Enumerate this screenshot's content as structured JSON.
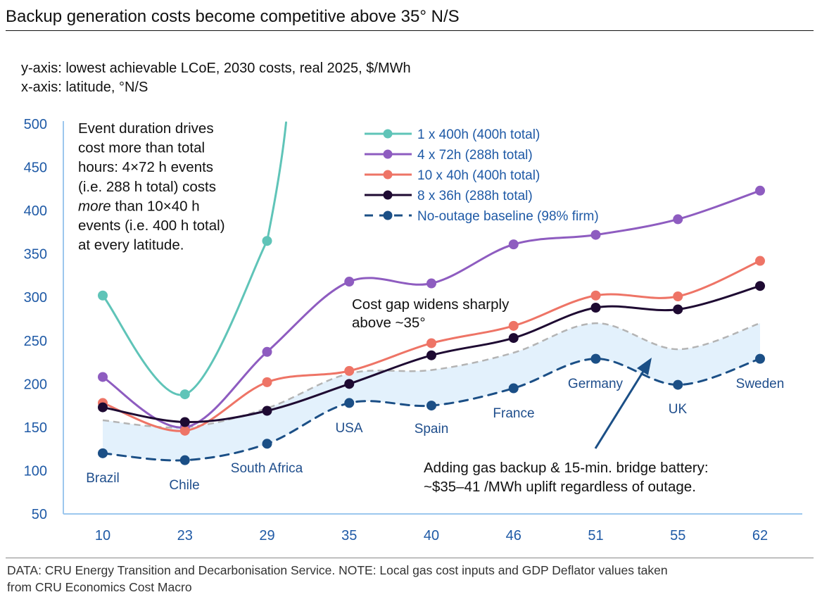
{
  "page": {
    "title": "Backup generation costs become competitive above 35° N/S",
    "y_note": "y-axis: lowest achievable LCoE, 2030 costs, real 2025, $/MWh",
    "x_note": "x-axis: latitude, °N/S",
    "footer_line1": "DATA: CRU Energy Transition and Decarbonisation Service. NOTE: Local gas cost inputs and GDP Deflator values taken",
    "footer_line2": "from CRU Economics Cost Macro"
  },
  "chart_data": {
    "type": "line",
    "title": "Backup generation costs become competitive above 35° N/S",
    "x": [
      10,
      23,
      29,
      35,
      40,
      46,
      51,
      55,
      62
    ],
    "x_tick_labels": [
      "10",
      "23",
      "29",
      "35",
      "40",
      "46",
      "51",
      "55",
      "62"
    ],
    "ylim": [
      50,
      500
    ],
    "yticks": [
      50,
      100,
      150,
      200,
      250,
      300,
      350,
      400,
      450,
      500
    ],
    "grid": false,
    "legend_position": "top-center",
    "countries": [
      "Brazil",
      "Chile",
      "South Africa",
      "USA",
      "Spain",
      "France",
      "Germany",
      "UK",
      "Sweden"
    ],
    "series": [
      {
        "name": "1 x 400h (400h total)",
        "color": "#5fc4b8",
        "style": "solid",
        "values": [
          302,
          188,
          365,
          null,
          null,
          null,
          null,
          null,
          null
        ]
      },
      {
        "name": "4 x 72h (288h total)",
        "color": "#8e5cc0",
        "style": "solid",
        "values": [
          208,
          150,
          237,
          318,
          316,
          361,
          372,
          390,
          423
        ]
      },
      {
        "name": "10 x 40h (400h total)",
        "color": "#ee7466",
        "style": "solid",
        "values": [
          178,
          146,
          202,
          215,
          247,
          267,
          302,
          301,
          342
        ]
      },
      {
        "name": "8 x 36h (288h total)",
        "color": "#1e0a32",
        "style": "solid",
        "values": [
          173,
          156,
          169,
          200,
          233,
          253,
          288,
          286,
          313
        ]
      },
      {
        "name": "No-outage baseline (98% firm)",
        "color": "#1b4f86",
        "style": "dashed",
        "values": [
          120,
          112,
          131,
          178,
          175,
          195,
          229,
          199,
          229
        ]
      }
    ],
    "gas_backup_band": {
      "lower": [
        120,
        112,
        131,
        178,
        175,
        195,
        229,
        199,
        229
      ],
      "upper": [
        158,
        150,
        172,
        212,
        216,
        236,
        270,
        240,
        270
      ]
    },
    "annotations": {
      "event_duration": [
        "Event duration drives",
        "cost more than total",
        "hours: 4×72 h events",
        "(i.e. 288 h total) costs"
      ],
      "event_more_word": "more",
      "event_more_rest": " than 10×40 h",
      "event_duration_end": [
        "events (i.e. 400 h total)",
        "at every latitude."
      ],
      "cost_gap": [
        "Cost gap widens sharply",
        "above ~35°"
      ],
      "gas_backup": [
        "Adding gas backup & 15-min. bridge battery:",
        "~$35–41 /MWh uplift regardless of outage."
      ]
    }
  }
}
